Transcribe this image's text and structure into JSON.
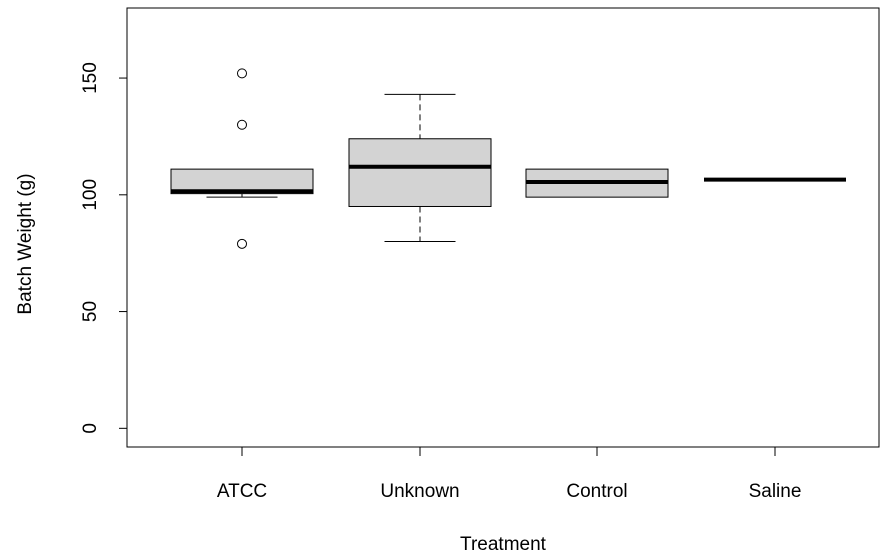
{
  "chart_data": {
    "type": "box",
    "title": "",
    "xlabel": "Treatment",
    "ylabel": "Batch Weight (g)",
    "ylim": [
      -8,
      180
    ],
    "y_ticks": [
      0,
      50,
      100,
      150
    ],
    "y_tick_labels": [
      "0",
      "50",
      "100",
      "150"
    ],
    "categories": [
      "ATCC",
      "Unknown",
      "Control",
      "Saline"
    ],
    "box_fill": "#d3d3d3",
    "grid": false,
    "boxes": [
      {
        "category": "ATCC",
        "whisker_low": 99,
        "q1": 100.5,
        "median": 101.5,
        "q3": 111,
        "whisker_high": 111,
        "outliers": [
          152,
          130,
          79
        ]
      },
      {
        "category": "Unknown",
        "whisker_low": 80,
        "q1": 95,
        "median": 112,
        "q3": 124,
        "whisker_high": 143,
        "outliers": []
      },
      {
        "category": "Control",
        "whisker_low": 99,
        "q1": 99,
        "median": 105.5,
        "q3": 111,
        "whisker_high": 111,
        "outliers": []
      },
      {
        "category": "Saline",
        "whisker_low": 106.5,
        "q1": 106.5,
        "median": 106.5,
        "q3": 106.5,
        "whisker_high": 106.5,
        "outliers": []
      }
    ]
  }
}
